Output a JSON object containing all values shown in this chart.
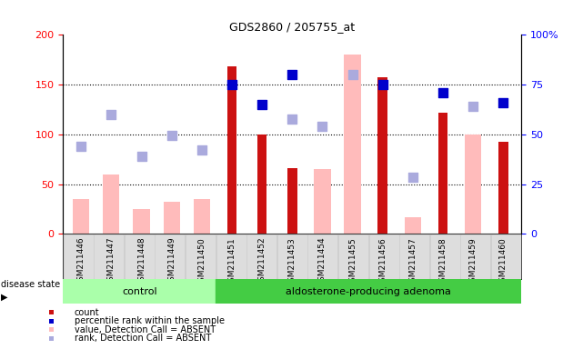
{
  "title": "GDS2860 / 205755_at",
  "samples": [
    "GSM211446",
    "GSM211447",
    "GSM211448",
    "GSM211449",
    "GSM211450",
    "GSM211451",
    "GSM211452",
    "GSM211453",
    "GSM211454",
    "GSM211455",
    "GSM211456",
    "GSM211457",
    "GSM211458",
    "GSM211459",
    "GSM211460"
  ],
  "count_values": [
    null,
    null,
    null,
    null,
    null,
    168,
    100,
    66,
    null,
    null,
    157,
    null,
    122,
    null,
    93
  ],
  "percentile_rank": [
    null,
    null,
    null,
    null,
    null,
    75,
    65,
    80,
    null,
    null,
    75,
    null,
    71,
    null,
    66
  ],
  "value_absent": [
    35,
    60,
    25,
    32,
    35,
    null,
    null,
    null,
    65,
    180,
    null,
    17,
    null,
    100,
    null
  ],
  "rank_absent": [
    88,
    120,
    78,
    99,
    84,
    null,
    null,
    115,
    108,
    160,
    null,
    57,
    null,
    128,
    null
  ],
  "ylim": [
    0,
    200
  ],
  "y2lim": [
    0,
    100
  ],
  "yticks_left": [
    0,
    50,
    100,
    150,
    200
  ],
  "yticks_right": [
    0,
    25,
    50,
    75,
    100
  ],
  "hlines": [
    50,
    100,
    150
  ],
  "color_count": "#cc1111",
  "color_percentile": "#0000cc",
  "color_value_absent": "#ffbbbb",
  "color_rank_absent": "#aaaadd",
  "group_control_color": "#aaffaa",
  "group_adenoma_color": "#44cc44",
  "n_control": 5,
  "n_adenoma": 10,
  "figsize": [
    6.3,
    3.84
  ],
  "dpi": 100
}
